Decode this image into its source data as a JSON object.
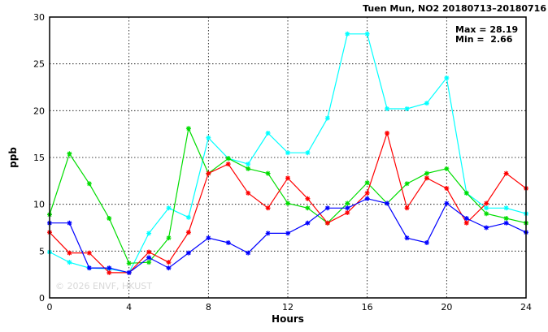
{
  "chart_data": {
    "type": "line",
    "title": "Tuen Mun, NO2 20180713–20180716",
    "xlabel": "Hours",
    "ylabel": "ppb",
    "xlim": [
      0,
      24
    ],
    "ylim": [
      0,
      30
    ],
    "x_ticks": [
      0,
      4,
      8,
      12,
      16,
      20,
      24
    ],
    "y_ticks": [
      0,
      5,
      10,
      15,
      20,
      25,
      30
    ],
    "grid": true,
    "stats": {
      "max_label": "Max = 28.19",
      "min_label": "Min =  2.66"
    },
    "watermark": "© 2026  ENVF, HKUST",
    "x": [
      0,
      1,
      2,
      3,
      4,
      5,
      6,
      7,
      8,
      9,
      10,
      11,
      12,
      13,
      14,
      15,
      16,
      17,
      18,
      19,
      20,
      21,
      22,
      23,
      24
    ],
    "series": [
      {
        "color": "#00ffff",
        "values": [
          4.9,
          3.8,
          3.2,
          3.1,
          2.7,
          6.9,
          9.6,
          8.6,
          17.1,
          14.9,
          14.3,
          17.6,
          15.5,
          15.5,
          19.2,
          28.2,
          28.2,
          20.2,
          20.2,
          20.8,
          23.5,
          11.2,
          9.6,
          9.6,
          9.0
        ]
      },
      {
        "color": "#00dd00",
        "values": [
          8.9,
          15.4,
          12.2,
          8.5,
          3.7,
          3.8,
          6.4,
          18.1,
          13.3,
          14.9,
          13.8,
          13.3,
          10.1,
          9.6,
          8.0,
          10.1,
          12.3,
          10.1,
          12.2,
          13.3,
          13.8,
          11.2,
          9.0,
          8.5,
          8.0
        ]
      },
      {
        "color": "#ff0000",
        "values": [
          7.0,
          4.8,
          4.8,
          2.7,
          2.7,
          4.9,
          3.8,
          7.0,
          13.3,
          14.3,
          11.2,
          9.6,
          12.8,
          10.6,
          8.0,
          9.1,
          11.2,
          17.6,
          9.6,
          12.8,
          11.7,
          8.0,
          10.1,
          13.3,
          11.7
        ]
      },
      {
        "color": "#0000ff",
        "values": [
          8.0,
          8.0,
          3.2,
          3.2,
          2.7,
          4.3,
          3.2,
          4.8,
          6.4,
          5.9,
          4.8,
          6.9,
          6.9,
          8.0,
          9.6,
          9.6,
          10.6,
          10.1,
          6.4,
          5.9,
          10.1,
          8.5,
          7.5,
          8.0,
          7.0
        ]
      }
    ]
  }
}
